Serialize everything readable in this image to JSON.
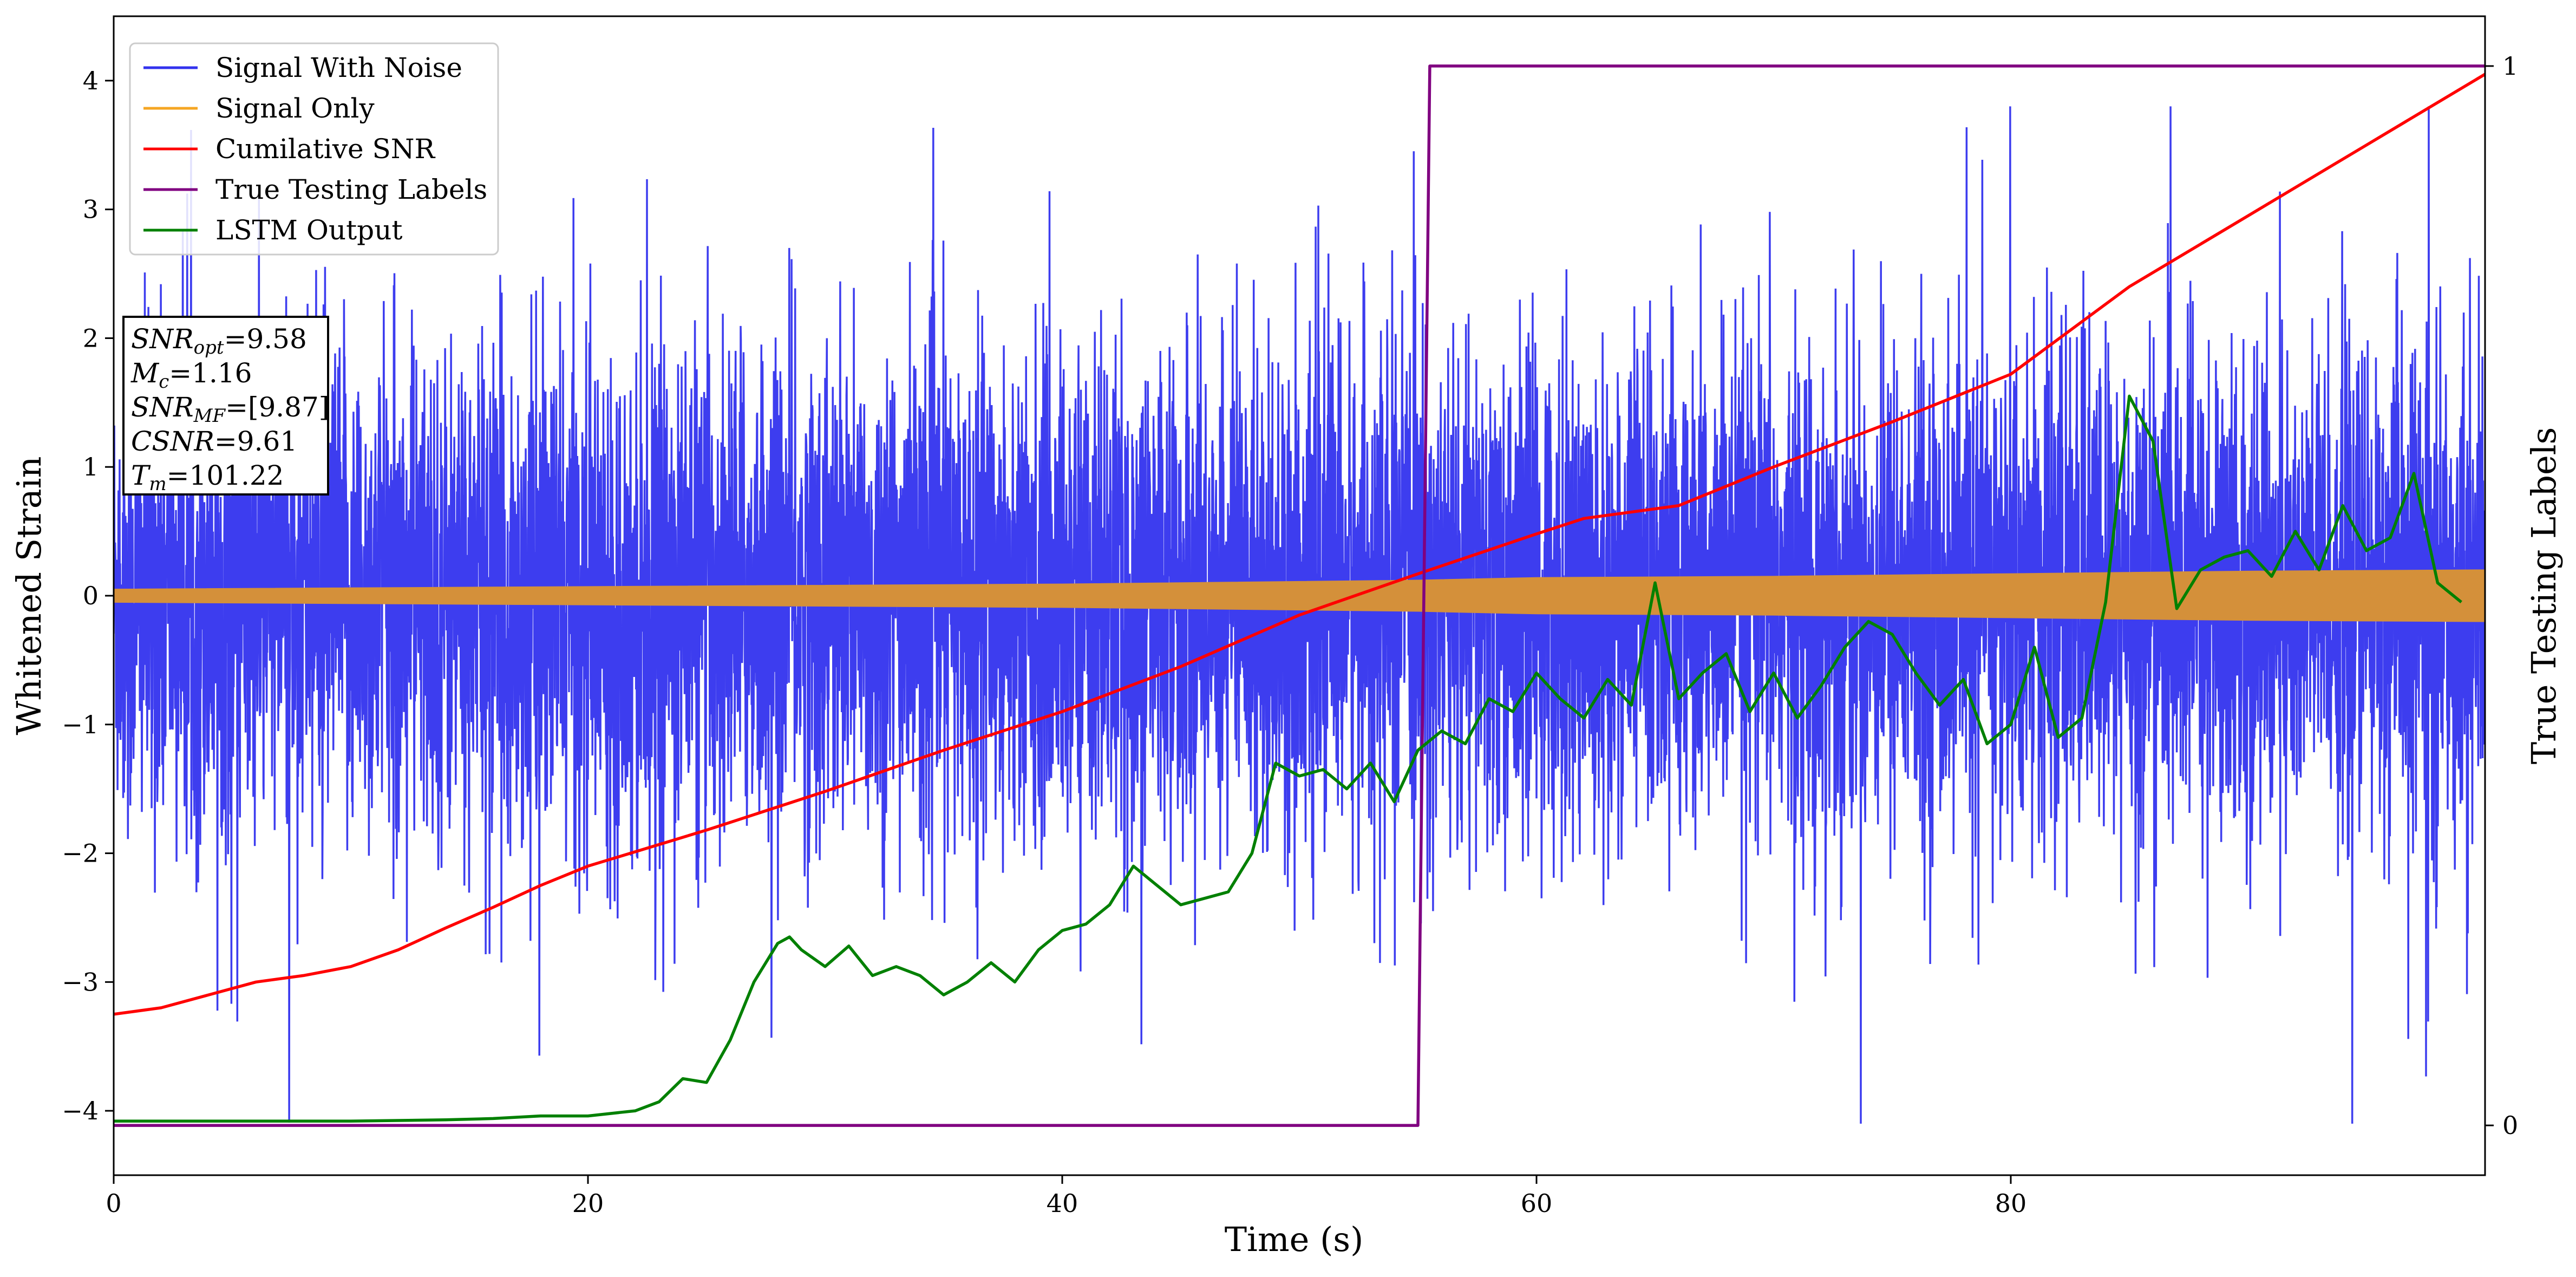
{
  "chart_data": {
    "type": "line",
    "xlabel": "Time (s)",
    "ylabel": "Whitened Strain",
    "y2label": "True Testing Labels",
    "xlim": [
      0,
      100
    ],
    "ylim": [
      -4.5,
      4.5
    ],
    "y2lim": [
      -0.047,
      1.047
    ],
    "x_ticks": [
      0,
      20,
      40,
      60,
      80
    ],
    "y_ticks": [
      -4,
      -3,
      -2,
      -1,
      0,
      1,
      2,
      3,
      4
    ],
    "y2_ticks": [
      0,
      1
    ],
    "grid": false,
    "legend_position": "top-left",
    "colors": {
      "signal_with_noise": "#3333ee",
      "signal_only": "#f5a623",
      "cumulative_snr": "#ff0000",
      "true_labels": "#800080",
      "lstm_output": "#008000",
      "signal_overlap": "#d4903a"
    },
    "series": [
      {
        "name": "Signal With Noise",
        "color": "#3333ee",
        "description_values": {
          "x_range": [
            0,
            100
          ],
          "typical_range": [
            -1.8,
            2.0
          ],
          "min": -4.1,
          "max": 3.8
        }
      },
      {
        "name": "Signal Only",
        "color": "#f5a623",
        "x": [
          0,
          20,
          40,
          55,
          60,
          70,
          80,
          90,
          100
        ],
        "envelope_upper": [
          0.05,
          0.07,
          0.09,
          0.12,
          0.14,
          0.15,
          0.17,
          0.19,
          0.2
        ],
        "envelope_lower": [
          -0.05,
          -0.07,
          -0.09,
          -0.12,
          -0.14,
          -0.15,
          -0.17,
          -0.19,
          -0.2
        ]
      },
      {
        "name": "Cumilative SNR",
        "color": "#ff0000",
        "x": [
          0,
          2,
          4,
          6,
          8,
          10,
          12,
          14,
          16,
          18,
          20,
          25,
          30,
          35,
          40,
          45,
          50,
          55,
          60,
          62,
          66,
          70,
          75,
          80,
          85,
          90,
          95,
          100
        ],
        "y": [
          -3.25,
          -3.2,
          -3.1,
          -3.0,
          -2.95,
          -2.88,
          -2.75,
          -2.58,
          -2.42,
          -2.25,
          -2.1,
          -1.82,
          -1.52,
          -1.2,
          -0.9,
          -0.55,
          -0.15,
          0.17,
          0.48,
          0.6,
          0.7,
          1.0,
          1.35,
          1.72,
          2.4,
          2.95,
          3.5,
          4.05
        ]
      },
      {
        "name": "True Testing Labels",
        "color": "#800080",
        "axis": "right",
        "x": [
          0,
          55,
          55.5,
          100
        ],
        "y": [
          0,
          0,
          1,
          1
        ]
      },
      {
        "name": "LSTM Output",
        "color": "#008000",
        "x": [
          0,
          10,
          14,
          16,
          18,
          20,
          22,
          23,
          24,
          25,
          26,
          27,
          28,
          28.5,
          29,
          30,
          31,
          32,
          33,
          34,
          35,
          36,
          37,
          38,
          39,
          40,
          41,
          42,
          43,
          44,
          45,
          46,
          47,
          48,
          49,
          50,
          51,
          52,
          53,
          54,
          55,
          56,
          57,
          58,
          59,
          60,
          61,
          62,
          63,
          64,
          65,
          66,
          67,
          68,
          69,
          70,
          71,
          72,
          73,
          74,
          75,
          76,
          77,
          78,
          79,
          80,
          81,
          82,
          83,
          84,
          85,
          86,
          87,
          88,
          89,
          90,
          91,
          92,
          93,
          94,
          95,
          96,
          97,
          98,
          99
        ],
        "y": [
          -4.08,
          -4.08,
          -4.07,
          -4.06,
          -4.04,
          -4.04,
          -4.0,
          -3.93,
          -3.75,
          -3.78,
          -3.45,
          -3.0,
          -2.7,
          -2.65,
          -2.75,
          -2.88,
          -2.72,
          -2.95,
          -2.88,
          -2.95,
          -3.1,
          -3.0,
          -2.85,
          -3.0,
          -2.75,
          -2.6,
          -2.55,
          -2.4,
          -2.1,
          -2.25,
          -2.4,
          -2.35,
          -2.3,
          -2.0,
          -1.3,
          -1.4,
          -1.35,
          -1.5,
          -1.3,
          -1.6,
          -1.2,
          -1.05,
          -1.15,
          -0.8,
          -0.9,
          -0.6,
          -0.8,
          -0.95,
          -0.65,
          -0.85,
          0.1,
          -0.8,
          -0.6,
          -0.45,
          -0.9,
          -0.6,
          -0.95,
          -0.7,
          -0.4,
          -0.2,
          -0.3,
          -0.6,
          -0.85,
          -0.65,
          -1.15,
          -1.0,
          -0.4,
          -1.1,
          -0.95,
          -0.05,
          1.55,
          1.2,
          -0.1,
          0.2,
          0.3,
          0.35,
          0.15,
          0.5,
          0.2,
          0.7,
          0.35,
          0.45,
          0.95,
          0.1,
          -0.05
        ]
      }
    ],
    "annotation": {
      "lines": [
        {
          "sym": "SNR",
          "sub": "opt",
          "value": "=9.58"
        },
        {
          "sym": "M",
          "sub": "c",
          "value": "=1.16"
        },
        {
          "sym": "SNR",
          "sub": "MF",
          "value": "=[9.87]"
        },
        {
          "sym": "CSNR",
          "sub": "",
          "value": "=9.61"
        },
        {
          "sym": "T",
          "sub": "m",
          "value": "=101.22"
        }
      ]
    }
  }
}
